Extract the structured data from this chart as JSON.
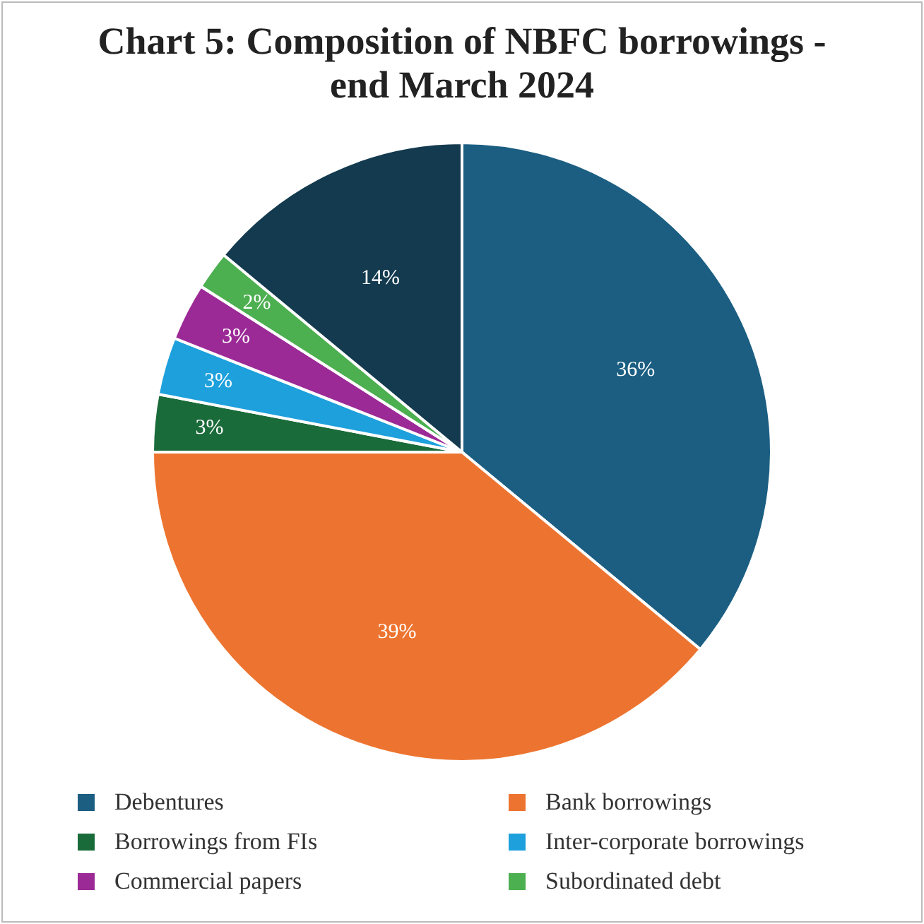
{
  "chart_data": {
    "type": "pie",
    "title": "Chart 5: Composition of NBFC borrowings - end March 2024",
    "categories": [
      "Debentures",
      "Bank borrowings",
      "Borrowings from FIs",
      "Inter-corporate borrowings",
      "Commercial papers",
      "Subordinated debt",
      null
    ],
    "values": [
      36,
      39,
      3,
      3,
      3,
      2,
      14
    ],
    "colors": [
      "#1b5e82",
      "#ed7430",
      "#1a6b3a",
      "#1ea0dc",
      "#9b2a96",
      "#4caf50",
      "#133a4e"
    ],
    "value_labels": [
      "36%",
      "39%",
      "3%",
      "3%",
      "3%",
      "2%",
      "14%"
    ],
    "legend": "bottom"
  }
}
